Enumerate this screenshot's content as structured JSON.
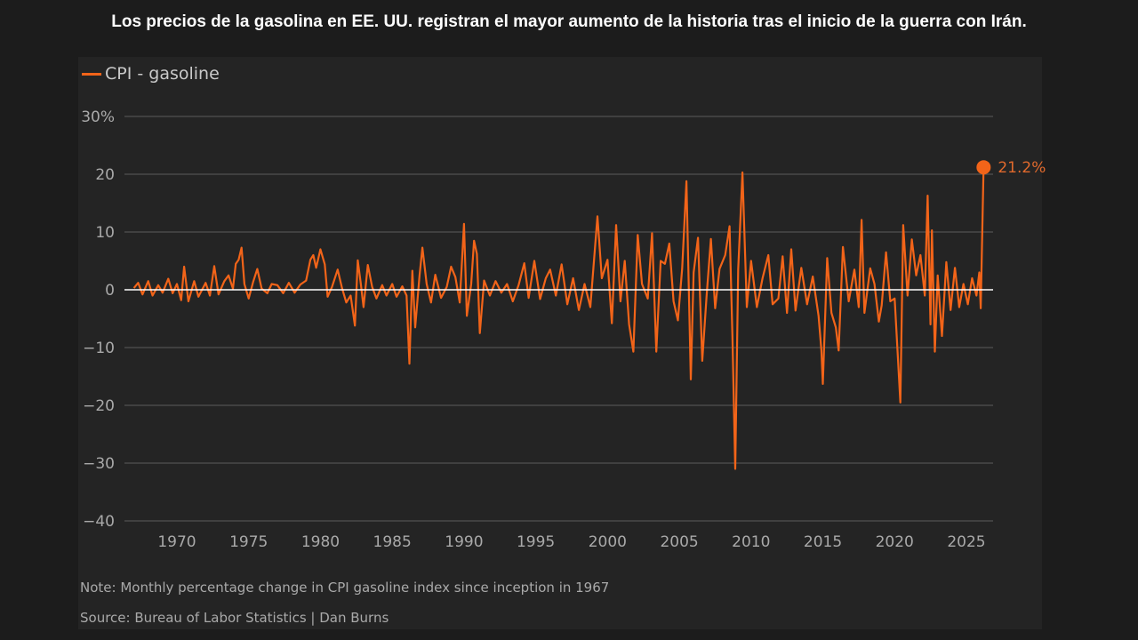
{
  "title": "Los precios de la gasolina en EE. UU. registran el mayor aumento de la historia tras el inicio de la guerra con Irán.",
  "chart_data": {
    "type": "line",
    "title": "Los precios de la gasolina en EE. UU. registran el mayor aumento de la historia tras el inicio de la guerra con Irán.",
    "xlabel": "",
    "ylabel": "",
    "ylim": [
      -40,
      30
    ],
    "xlim": [
      1967,
      2026.2
    ],
    "yticks": [
      -40,
      -30,
      -20,
      -10,
      0,
      10,
      20,
      30
    ],
    "ytick_labels": [
      "−40",
      "−30",
      "−20",
      "−10",
      "0",
      "10",
      "20",
      "30%"
    ],
    "xticks": [
      1970,
      1975,
      1980,
      1985,
      1990,
      1995,
      2000,
      2005,
      2010,
      2015,
      2020,
      2025
    ],
    "xtick_labels": [
      "1970",
      "1975",
      "1980",
      "1985",
      "1990",
      "1995",
      "2000",
      "2005",
      "2010",
      "2015",
      "2020",
      "2025"
    ],
    "grid": true,
    "legend": {
      "position": "top-left",
      "entries": [
        "CPI - gasoline"
      ]
    },
    "annotation": {
      "label": "21.2%",
      "x": 2026.2,
      "y": 21.2
    },
    "series": [
      {
        "name": "CPI - gasoline",
        "color": "#f26419",
        "points": [
          [
            1967.0,
            0.3
          ],
          [
            1967.3,
            1.2
          ],
          [
            1967.6,
            -0.8
          ],
          [
            1968.0,
            1.5
          ],
          [
            1968.3,
            -1.0
          ],
          [
            1968.7,
            0.8
          ],
          [
            1969.0,
            -0.5
          ],
          [
            1969.4,
            1.9
          ],
          [
            1969.7,
            -0.6
          ],
          [
            1970.0,
            1.0
          ],
          [
            1970.3,
            -1.8
          ],
          [
            1970.5,
            4.0
          ],
          [
            1970.8,
            -2.0
          ],
          [
            1971.2,
            1.5
          ],
          [
            1971.5,
            -1.2
          ],
          [
            1972.0,
            1.2
          ],
          [
            1972.3,
            -1.0
          ],
          [
            1972.6,
            4.1
          ],
          [
            1972.9,
            -0.8
          ],
          [
            1973.3,
            1.5
          ],
          [
            1973.6,
            2.5
          ],
          [
            1973.9,
            0.2
          ],
          [
            1974.1,
            4.5
          ],
          [
            1974.3,
            5.2
          ],
          [
            1974.5,
            7.3
          ],
          [
            1974.7,
            1.0
          ],
          [
            1975.0,
            -1.5
          ],
          [
            1975.3,
            1.3
          ],
          [
            1975.6,
            3.6
          ],
          [
            1975.9,
            0.2
          ],
          [
            1976.3,
            -0.6
          ],
          [
            1976.6,
            1.0
          ],
          [
            1977.0,
            0.8
          ],
          [
            1977.4,
            -0.6
          ],
          [
            1977.8,
            1.2
          ],
          [
            1978.2,
            -0.5
          ],
          [
            1978.6,
            0.9
          ],
          [
            1979.0,
            1.6
          ],
          [
            1979.3,
            5.2
          ],
          [
            1979.5,
            6.0
          ],
          [
            1979.7,
            3.8
          ],
          [
            1980.0,
            7.0
          ],
          [
            1980.3,
            4.4
          ],
          [
            1980.5,
            -1.2
          ],
          [
            1980.8,
            0.5
          ],
          [
            1981.2,
            3.5
          ],
          [
            1981.5,
            0.3
          ],
          [
            1981.8,
            -2.2
          ],
          [
            1982.1,
            -1.0
          ],
          [
            1982.4,
            -6.2
          ],
          [
            1982.6,
            5.1
          ],
          [
            1982.8,
            1.2
          ],
          [
            1983.0,
            -3.0
          ],
          [
            1983.3,
            4.3
          ],
          [
            1983.6,
            0.5
          ],
          [
            1983.9,
            -1.5
          ],
          [
            1984.3,
            0.8
          ],
          [
            1984.6,
            -1.0
          ],
          [
            1985.0,
            1.0
          ],
          [
            1985.3,
            -1.2
          ],
          [
            1985.7,
            0.6
          ],
          [
            1986.0,
            -1.0
          ],
          [
            1986.2,
            -12.8
          ],
          [
            1986.4,
            3.3
          ],
          [
            1986.6,
            -6.5
          ],
          [
            1986.9,
            2.5
          ],
          [
            1987.1,
            7.3
          ],
          [
            1987.4,
            1.0
          ],
          [
            1987.7,
            -2.2
          ],
          [
            1988.0,
            2.6
          ],
          [
            1988.4,
            -1.4
          ],
          [
            1988.8,
            0.5
          ],
          [
            1989.1,
            4.0
          ],
          [
            1989.4,
            2.2
          ],
          [
            1989.7,
            -2.2
          ],
          [
            1990.0,
            11.4
          ],
          [
            1990.2,
            -4.5
          ],
          [
            1990.5,
            1.0
          ],
          [
            1990.7,
            8.5
          ],
          [
            1990.9,
            6.2
          ],
          [
            1991.1,
            -7.5
          ],
          [
            1991.4,
            1.6
          ],
          [
            1991.8,
            -1.0
          ],
          [
            1992.2,
            1.5
          ],
          [
            1992.6,
            -0.5
          ],
          [
            1993.0,
            1.0
          ],
          [
            1993.4,
            -2.0
          ],
          [
            1993.8,
            0.8
          ],
          [
            1994.2,
            4.6
          ],
          [
            1994.5,
            -1.4
          ],
          [
            1994.9,
            5.0
          ],
          [
            1995.3,
            -1.6
          ],
          [
            1995.7,
            2.0
          ],
          [
            1996.0,
            3.5
          ],
          [
            1996.4,
            -1.0
          ],
          [
            1996.8,
            4.4
          ],
          [
            1997.2,
            -2.5
          ],
          [
            1997.6,
            2.0
          ],
          [
            1998.0,
            -3.5
          ],
          [
            1998.4,
            1.0
          ],
          [
            1998.8,
            -3.0
          ],
          [
            1999.3,
            12.7
          ],
          [
            1999.6,
            2.0
          ],
          [
            2000.0,
            5.2
          ],
          [
            2000.3,
            -5.8
          ],
          [
            2000.6,
            11.2
          ],
          [
            2000.9,
            -2.0
          ],
          [
            2001.2,
            5.0
          ],
          [
            2001.5,
            -6.0
          ],
          [
            2001.8,
            -10.7
          ],
          [
            2002.1,
            9.5
          ],
          [
            2002.4,
            1.0
          ],
          [
            2002.8,
            -1.5
          ],
          [
            2003.1,
            9.8
          ],
          [
            2003.4,
            -10.7
          ],
          [
            2003.7,
            5.0
          ],
          [
            2004.0,
            4.5
          ],
          [
            2004.3,
            8.0
          ],
          [
            2004.6,
            -2.0
          ],
          [
            2004.9,
            -5.3
          ],
          [
            2005.2,
            3.7
          ],
          [
            2005.5,
            18.8
          ],
          [
            2005.8,
            -15.5
          ],
          [
            2006.0,
            3.0
          ],
          [
            2006.3,
            9.0
          ],
          [
            2006.6,
            -12.3
          ],
          [
            2006.9,
            -1.0
          ],
          [
            2007.2,
            8.8
          ],
          [
            2007.5,
            -3.2
          ],
          [
            2007.8,
            3.6
          ],
          [
            2008.2,
            6.0
          ],
          [
            2008.5,
            11.0
          ],
          [
            2008.7,
            -8.0
          ],
          [
            2008.9,
            -31.0
          ],
          [
            2009.1,
            3.5
          ],
          [
            2009.4,
            20.3
          ],
          [
            2009.7,
            -3.0
          ],
          [
            2010.0,
            5.0
          ],
          [
            2010.4,
            -3.0
          ],
          [
            2010.8,
            2.0
          ],
          [
            2011.2,
            6.0
          ],
          [
            2011.5,
            -2.5
          ],
          [
            2011.9,
            -1.5
          ],
          [
            2012.2,
            5.8
          ],
          [
            2012.5,
            -4.0
          ],
          [
            2012.8,
            7.0
          ],
          [
            2013.1,
            -3.6
          ],
          [
            2013.5,
            3.8
          ],
          [
            2013.9,
            -2.5
          ],
          [
            2014.3,
            2.3
          ],
          [
            2014.7,
            -4.5
          ],
          [
            2014.9,
            -10.5
          ],
          [
            2015.0,
            -16.3
          ],
          [
            2015.3,
            5.5
          ],
          [
            2015.6,
            -4.0
          ],
          [
            2015.9,
            -6.5
          ],
          [
            2016.1,
            -10.5
          ],
          [
            2016.4,
            7.4
          ],
          [
            2016.8,
            -2.0
          ],
          [
            2017.2,
            3.5
          ],
          [
            2017.5,
            -3.0
          ],
          [
            2017.7,
            12.1
          ],
          [
            2017.9,
            -4.0
          ],
          [
            2018.3,
            3.7
          ],
          [
            2018.6,
            1.0
          ],
          [
            2018.9,
            -5.5
          ],
          [
            2019.1,
            -2.7
          ],
          [
            2019.4,
            6.5
          ],
          [
            2019.7,
            -2.0
          ],
          [
            2020.0,
            -1.5
          ],
          [
            2020.2,
            -10.5
          ],
          [
            2020.4,
            -19.5
          ],
          [
            2020.6,
            11.2
          ],
          [
            2020.9,
            -1.0
          ],
          [
            2021.2,
            8.7
          ],
          [
            2021.5,
            2.5
          ],
          [
            2021.8,
            6.0
          ],
          [
            2022.1,
            -1.0
          ],
          [
            2022.3,
            16.3
          ],
          [
            2022.5,
            -6.0
          ],
          [
            2022.6,
            10.3
          ],
          [
            2022.8,
            -10.7
          ],
          [
            2023.0,
            2.5
          ],
          [
            2023.3,
            -8.0
          ],
          [
            2023.6,
            4.8
          ],
          [
            2023.9,
            -3.5
          ],
          [
            2024.2,
            3.8
          ],
          [
            2024.5,
            -3.0
          ],
          [
            2024.8,
            1.0
          ],
          [
            2025.1,
            -2.5
          ],
          [
            2025.4,
            2.0
          ],
          [
            2025.7,
            -1.0
          ],
          [
            2025.9,
            3.0
          ],
          [
            2026.0,
            -3.2
          ],
          [
            2026.2,
            21.2
          ]
        ]
      }
    ]
  },
  "footer": {
    "note": "Note: Monthly percentage change in CPI gasoline index since inception in 1967",
    "source": "Source: Bureau of Labor Statistics | Dan Burns"
  }
}
